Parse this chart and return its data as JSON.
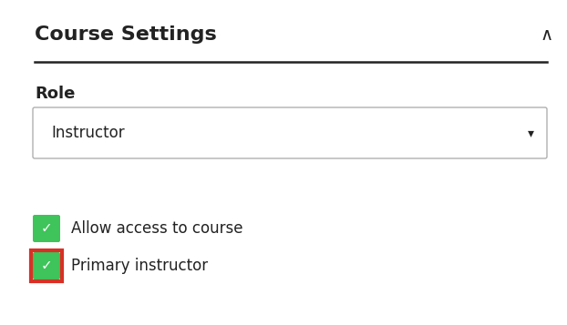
{
  "title": "Course Settings",
  "title_fontsize": 16,
  "title_fontweight": "bold",
  "caret_char": "∧",
  "role_label": "Role",
  "dropdown_text": "Instructor",
  "checkbox1_label": "Allow access to course",
  "checkbox2_label": "Primary instructor",
  "green_color": "#3ec45a",
  "red_highlight_color": "#d93025",
  "bg_color": "#ffffff",
  "text_color": "#222222",
  "dropdown_border_color": "#b0b0b0",
  "divider_color": "#222222",
  "font_size_role": 12,
  "font_size_dropdown": 12,
  "font_size_checkbox_label": 12,
  "font_size_caret": 14
}
